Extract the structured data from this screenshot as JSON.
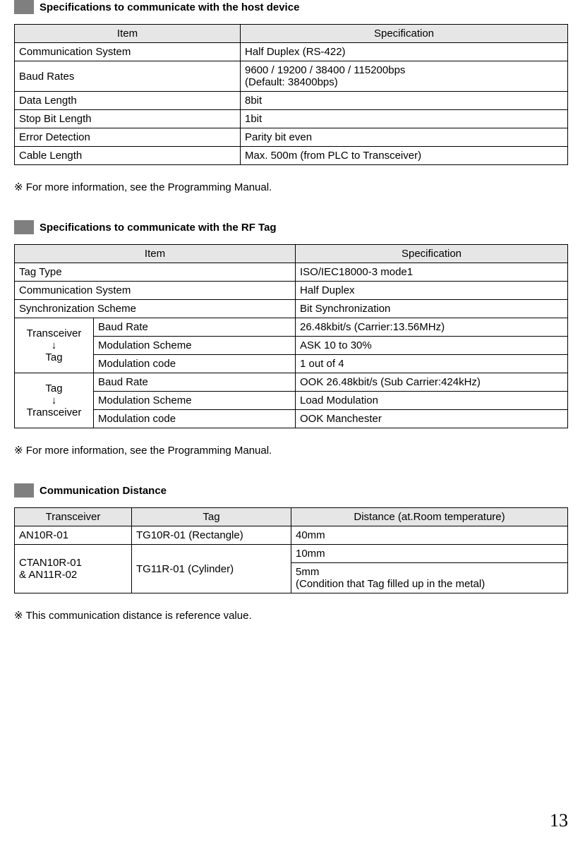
{
  "section1": {
    "title": "Specifications to communicate with the host device",
    "headers": [
      "Item",
      "Specification"
    ],
    "rows": [
      [
        "Communication System",
        "Half Duplex (RS-422)"
      ],
      [
        "Baud Rates",
        "9600 / 19200 / 38400 / 115200bps\n(Default: 38400bps)"
      ],
      [
        "Data Length",
        "8bit"
      ],
      [
        "Stop Bit Length",
        "1bit"
      ],
      [
        "Error Detection",
        "Parity bit even"
      ],
      [
        "Cable Length",
        "Max. 500m (from PLC to Transceiver)"
      ]
    ],
    "note": "※ For more information, see the Programming Manual."
  },
  "section2": {
    "title": "Specifications to communicate with the RF Tag",
    "headers": [
      "Item",
      "Specification"
    ],
    "rows_simple": [
      [
        "Tag Type",
        "ISO/IEC18000-3 mode1"
      ],
      [
        "Communication System",
        "Half Duplex"
      ],
      [
        "Synchronization Scheme",
        "Bit Synchronization"
      ]
    ],
    "groupA": {
      "direction_lines": [
        "Transceiver",
        "↓",
        "Tag"
      ],
      "rows": [
        [
          "Baud Rate",
          "26.48kbit/s (Carrier:13.56MHz)"
        ],
        [
          "Modulation Scheme",
          "ASK 10 to 30%"
        ],
        [
          "Modulation code",
          "1 out of 4"
        ]
      ]
    },
    "groupB": {
      "direction_lines": [
        "Tag",
        "↓",
        "Transceiver"
      ],
      "rows": [
        [
          "Baud Rate",
          "OOK 26.48kbit/s (Sub Carrier:424kHz)"
        ],
        [
          "Modulation Scheme",
          "Load Modulation"
        ],
        [
          "Modulation code",
          "OOK Manchester"
        ]
      ]
    },
    "note": "※ For more information, see the Programming Manual."
  },
  "section3": {
    "title": "Communication Distance",
    "headers": [
      "Transceiver",
      "Tag",
      "Distance (at.Room temperature)"
    ],
    "row1": {
      "transceiver": "AN10R-01",
      "tag": "TG10R-01 (Rectangle)",
      "distance": "40mm"
    },
    "row23": {
      "transceiver": "CTAN10R-01\n  &    AN11R-02",
      "tag": "TG11R-01 (Cylinder)",
      "distance1": "10mm",
      "distance2": "5mm\n(Condition that Tag filled up in the metal)"
    },
    "note": "※ This communication distance is reference value."
  },
  "page_number": "13"
}
